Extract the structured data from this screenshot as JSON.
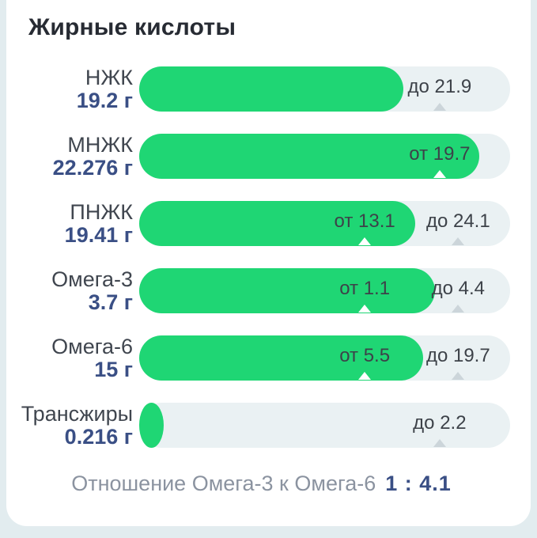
{
  "title": "Жирные кислоты",
  "colors": {
    "fill_green": "#1fd674",
    "track": "#eaf1f3",
    "value_navy": "#3a4f85",
    "marker_gray": "#ccd5da",
    "background": "#e2ecef"
  },
  "rows": [
    {
      "name": "НЖК",
      "value": "19.2 г",
      "fill_pct": 71.3,
      "tiny_fill": false,
      "markers": [
        {
          "label": "до 21.9",
          "pos_pct": 81,
          "on_fill": false
        }
      ]
    },
    {
      "name": "МНЖК",
      "value": "22.276 г",
      "fill_pct": 91.6,
      "tiny_fill": false,
      "markers": [
        {
          "label": "от 19.7",
          "pos_pct": 81,
          "on_fill": true
        }
      ]
    },
    {
      "name": "ПНЖК",
      "value": "19.41 г",
      "fill_pct": 74.4,
      "tiny_fill": false,
      "markers": [
        {
          "label": "от 13.1",
          "pos_pct": 60.8,
          "on_fill": true
        },
        {
          "label": "до 24.1",
          "pos_pct": 86,
          "on_fill": false
        }
      ]
    },
    {
      "name": "Омега-3",
      "value": "3.7 г",
      "fill_pct": 79.7,
      "tiny_fill": false,
      "markers": [
        {
          "label": "от 1.1",
          "pos_pct": 60.8,
          "on_fill": true
        },
        {
          "label": "до 4.4",
          "pos_pct": 86,
          "on_fill": false
        }
      ]
    },
    {
      "name": "Омега-6",
      "value": "15 г",
      "fill_pct": 76.5,
      "tiny_fill": false,
      "markers": [
        {
          "label": "от 5.5",
          "pos_pct": 60.8,
          "on_fill": true
        },
        {
          "label": "до 19.7",
          "pos_pct": 86,
          "on_fill": false
        }
      ]
    },
    {
      "name": "Трансжиры",
      "value": "0.216 г",
      "fill_pct": 6.5,
      "tiny_fill": true,
      "markers": [
        {
          "label": "до 2.2",
          "pos_pct": 81,
          "on_fill": false
        }
      ]
    }
  ],
  "footer": {
    "label": "Отношение Омега-3 к Омега-6",
    "value": "1 : 4.1"
  }
}
